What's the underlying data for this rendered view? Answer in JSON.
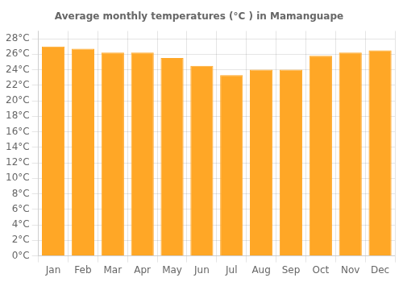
{
  "chart_data": {
    "type": "bar",
    "title": "Average monthly temperatures (°C ) in Mamanguape",
    "categories": [
      "Jan",
      "Feb",
      "Mar",
      "Apr",
      "May",
      "Jun",
      "Jul",
      "Aug",
      "Sep",
      "Oct",
      "Nov",
      "Dec"
    ],
    "values": [
      27.0,
      26.7,
      26.2,
      26.2,
      25.5,
      24.5,
      23.3,
      24.0,
      24.0,
      25.8,
      26.2,
      26.5
    ],
    "color": "#FFA726",
    "ylim": [
      0,
      29
    ],
    "yticks": [
      {
        "value": 0,
        "label": "0°C"
      },
      {
        "value": 2,
        "label": "2°C"
      },
      {
        "value": 4,
        "label": "4°C"
      },
      {
        "value": 6,
        "label": "6°C"
      },
      {
        "value": 8,
        "label": "8°C"
      },
      {
        "value": 10,
        "label": "10°C"
      },
      {
        "value": 12,
        "label": "12°C"
      },
      {
        "value": 14,
        "label": "14°C"
      },
      {
        "value": 16,
        "label": "16°C"
      },
      {
        "value": 18,
        "label": "18°C"
      },
      {
        "value": 20,
        "label": "20°C"
      },
      {
        "value": 22,
        "label": "22°C"
      },
      {
        "value": 24,
        "label": "24°C"
      },
      {
        "value": 26,
        "label": "26°C"
      },
      {
        "value": 28,
        "label": "28°C"
      }
    ],
    "grid": true
  }
}
